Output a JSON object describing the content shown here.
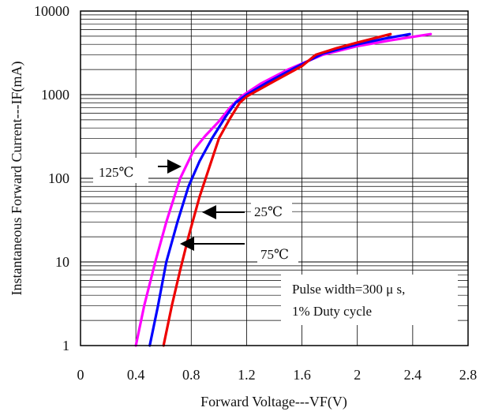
{
  "chart_data": {
    "type": "line",
    "title": "",
    "xlabel": "Forward Voltage---VF(V)",
    "ylabel": "Instantaneous Forward Current---IF(mA)",
    "x_scale": "linear",
    "y_scale": "log",
    "xlim": [
      0,
      2.8
    ],
    "ylim": [
      1,
      10000
    ],
    "x_ticks": [
      0,
      0.4,
      0.8,
      1.2,
      1.6,
      2,
      2.4,
      2.8
    ],
    "x_tick_labels": [
      "0",
      "0.4",
      "0.8",
      "1.2",
      "1.6",
      "2",
      "2.4",
      "2.8"
    ],
    "y_ticks": [
      1,
      10,
      100,
      1000,
      10000
    ],
    "y_tick_labels": [
      "1",
      "10",
      "100",
      "1000",
      "10000"
    ],
    "grid": true,
    "series": [
      {
        "name": "125°C",
        "color": "#ff00ff",
        "x": [
          0.4,
          0.46,
          0.54,
          0.62,
          0.72,
          0.82,
          0.9,
          1.0,
          1.08,
          1.16,
          1.3,
          1.5,
          1.75,
          2.0,
          2.25,
          2.53
        ],
        "y": [
          1,
          3,
          10,
          30,
          100,
          220,
          320,
          480,
          700,
          950,
          1350,
          2000,
          3000,
          3800,
          4500,
          5300
        ]
      },
      {
        "name": "25°C",
        "color": "#0000ff",
        "x": [
          0.5,
          0.56,
          0.62,
          0.7,
          0.78,
          0.86,
          0.95,
          1.05,
          1.12,
          1.2,
          1.35,
          1.55,
          1.75,
          2.0,
          2.2,
          2.38
        ],
        "y": [
          1,
          3,
          10,
          30,
          80,
          160,
          300,
          550,
          800,
          1000,
          1400,
          2100,
          3100,
          4000,
          4700,
          5300
        ]
      },
      {
        "name": "75°C",
        "color": "#ee0000",
        "x": [
          0.6,
          0.66,
          0.72,
          0.78,
          0.86,
          0.94,
          1.0,
          1.08,
          1.15,
          1.2,
          1.4,
          1.6,
          1.7,
          1.85,
          2.0,
          2.24
        ],
        "y": [
          1,
          3,
          8,
          20,
          60,
          150,
          300,
          520,
          800,
          950,
          1450,
          2200,
          3000,
          3600,
          4200,
          5300
        ]
      }
    ],
    "annotations": [
      {
        "text": "125℃",
        "arrow": "right",
        "x": 0.72,
        "y": 170
      },
      {
        "text": "25℃",
        "arrow": "left",
        "x": 0.82,
        "y": 40
      },
      {
        "text": "75℃",
        "arrow": "left",
        "x": 0.72,
        "y": 16
      },
      {
        "text": "Pulse width=300 μ s,",
        "arrow": "none"
      },
      {
        "text": "1% Duty cycle",
        "arrow": "none"
      }
    ]
  }
}
